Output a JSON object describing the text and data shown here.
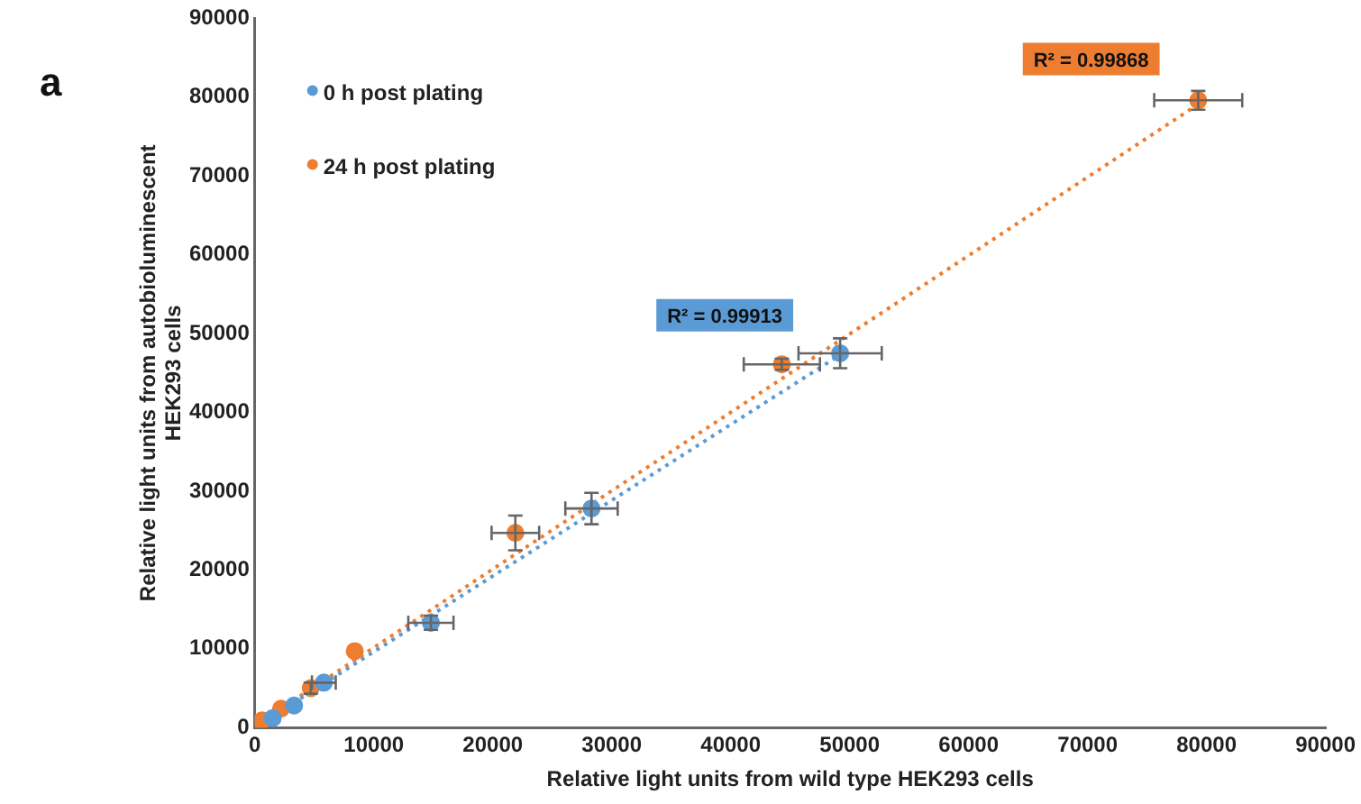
{
  "chart_data": {
    "type": "scatter",
    "xlabel": "Relative light units from wild type HEK293 cells",
    "ylabel": "Relative light units from autobioluminescent HEK293 cells",
    "xlim": [
      0,
      90000
    ],
    "xticks": [
      0,
      10000,
      20000,
      30000,
      40000,
      50000,
      60000,
      70000,
      80000,
      90000
    ],
    "ylim": [
      0,
      90000
    ],
    "yticks": [
      0,
      10000,
      20000,
      30000,
      40000,
      50000,
      60000,
      70000,
      80000,
      90000
    ],
    "grid": false,
    "legend": "top left",
    "marker": "circle",
    "annotations": [
      "a",
      "R² = 0.99913",
      "R² = 0.99868"
    ],
    "series": [
      {
        "name": "0 h post plating",
        "color": "#5b9bd5",
        "x": [
          1500,
          3300,
          5800,
          14800,
          28300,
          49200
        ],
        "values": [
          1200,
          2800,
          5700,
          13300,
          27800,
          47500
        ],
        "errors": [
          null,
          null,
          null,
          900,
          2000,
          1900
        ],
        "xerrors": [
          null,
          null,
          1000,
          1900,
          2200,
          3500
        ]
      },
      {
        "name": "24 h post plating",
        "color": "#ed7d31",
        "x": [
          600,
          2200,
          4700,
          8400,
          21900,
          44300,
          79300
        ],
        "values": [
          900,
          2400,
          5000,
          9700,
          24700,
          46100,
          79600
        ],
        "errors": [
          null,
          null,
          700,
          null,
          2200,
          700,
          1200
        ],
        "xerrors": [
          null,
          null,
          null,
          null,
          2000,
          3200,
          3700
        ]
      },
      {
        "type": "line",
        "color": "#5b9bd5",
        "line_style": "dotted",
        "marker": "none",
        "x": [
          0,
          49200
        ],
        "values": [
          0,
          47300
        ]
      },
      {
        "type": "line",
        "color": "#ed7d31",
        "line_style": "dotted",
        "marker": "none",
        "x": [
          0,
          80000
        ],
        "values": [
          200,
          79800
        ]
      }
    ]
  }
}
